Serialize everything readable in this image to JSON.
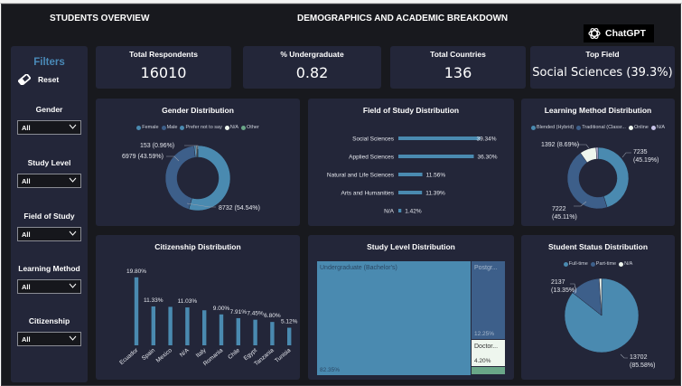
{
  "header": {
    "title_left": "STUDENTS  OVERVIEW",
    "title_center": "DEMOGRAPHICS AND ACADEMIC BREAKDOWN",
    "logo_text": "ChatGPT"
  },
  "kpis": [
    {
      "label": "Total Respondents",
      "value": "16010"
    },
    {
      "label": "% Undergraduate",
      "value": "0.82"
    },
    {
      "label": "Total Countries",
      "value": "136"
    },
    {
      "label": "Top Field",
      "value": "Social Sciences (39.3%)"
    }
  ],
  "filters": {
    "title": "Filters",
    "reset_label": "Reset",
    "items": [
      {
        "label": "Gender",
        "value": "All"
      },
      {
        "label": "Study Level",
        "value": "All"
      },
      {
        "label": "Field of Study",
        "value": "All"
      },
      {
        "label": "Learning Method",
        "value": "All"
      },
      {
        "label": "Citizenship",
        "value": "All"
      }
    ]
  },
  "colors": {
    "background": "#18191e",
    "card": "#232639",
    "accent": "#4a8ab8",
    "primary_series": "#4a8ab0",
    "secondary_series": "#3d5f8a",
    "light_series": "#eef6ee",
    "lavender": "#c7c3e8",
    "green": "#6aa688"
  },
  "chart_data": [
    {
      "id": "gender",
      "type": "pie",
      "donut": true,
      "title": "Gender Distribution",
      "legend": [
        "Female",
        "Male",
        "Prefer not to say",
        "N/A",
        "Other"
      ],
      "legend_colors": [
        "#4a8ab0",
        "#3d5f8a",
        "#4a8ab0",
        "#eef6ee",
        "#6aa688"
      ],
      "slices": [
        {
          "name": "Female",
          "value": 8732,
          "pct": 54.54,
          "label": "8732 (54.54%)",
          "color": "#4a8ab0"
        },
        {
          "name": "Male",
          "value": 6979,
          "pct": 43.59,
          "label": "6979 (43.59%)",
          "color": "#3d5f8a"
        },
        {
          "name": "Prefer not to say",
          "value": 153,
          "pct": 0.96,
          "label": "153 (0.96%)",
          "color": "#5a9ac0"
        },
        {
          "name": "N/A",
          "value": 80,
          "pct": 0.5,
          "label": "",
          "color": "#eef6ee"
        },
        {
          "name": "Other",
          "value": 66,
          "pct": 0.41,
          "label": "",
          "color": "#6aa688"
        }
      ]
    },
    {
      "id": "field",
      "type": "bar",
      "orientation": "horizontal",
      "title": "Field of Study Distribution",
      "categories": [
        "Social Sciences",
        "Applied Sciences",
        "Natural and Life Sciences",
        "Arts and Humanities",
        "N/A"
      ],
      "values": [
        39.34,
        36.3,
        11.56,
        11.39,
        1.42
      ],
      "labels": [
        "39.34%",
        "36.30%",
        "11.56%",
        "11.39%",
        "1.42%"
      ],
      "xlim": [
        0,
        40
      ]
    },
    {
      "id": "learning",
      "type": "pie",
      "donut": true,
      "title": "Learning Method Distribution",
      "legend": [
        "Blended (Hybrid)",
        "Traditional (Classr...",
        "Online",
        "N/A"
      ],
      "legend_colors": [
        "#4a8ab0",
        "#3d5f8a",
        "#eef6ee",
        "#c7c3e8"
      ],
      "slices": [
        {
          "name": "Blended (Hybrid)",
          "value": 7235,
          "pct": 45.19,
          "label": "7235\n(45.19%)",
          "color": "#4a8ab0"
        },
        {
          "name": "Traditional (Classroom)",
          "value": 7222,
          "pct": 45.11,
          "label": "7222\n(45.11%)",
          "color": "#3d5f8a"
        },
        {
          "name": "Online",
          "value": 1392,
          "pct": 8.69,
          "label": "1392 (8.69%)",
          "color": "#eef6ee"
        },
        {
          "name": "N/A",
          "value": 161,
          "pct": 1.01,
          "label": "",
          "color": "#c7c3e8"
        }
      ]
    },
    {
      "id": "citizenship",
      "type": "bar",
      "title": "Citizenship Distribution",
      "categories": [
        "Ecuador",
        "Spain",
        "Mexico",
        "N/A",
        "Italy",
        "Romania",
        "Chile",
        "Egypt",
        "Tanzania",
        "Tunisia"
      ],
      "values": [
        19.8,
        11.33,
        11.2,
        11.03,
        10.2,
        9.0,
        7.91,
        7.45,
        6.8,
        5.12
      ],
      "labels": [
        "19.80%",
        "11.33%",
        "",
        "11.03%",
        "",
        "9.00%",
        "7.91%",
        "7.45%",
        "6.80%",
        "5.12%"
      ],
      "ylim": [
        0,
        20
      ]
    },
    {
      "id": "study_level",
      "type": "treemap",
      "title": "Study Level Distribution",
      "items": [
        {
          "name": "Undergraduate (Bachelor's)",
          "pct": 82.35,
          "label": "82.35%",
          "color": "#4a8ab0",
          "text_color": "#2b4763"
        },
        {
          "name": "Postgr...",
          "pct": 12.25,
          "label": "12.25%",
          "color": "#3d5f8a",
          "text_color": "#a7b8cc"
        },
        {
          "name": "Doctor...",
          "pct": 4.2,
          "label": "4.20%",
          "color": "#eef6ee",
          "text_color": "#333333"
        },
        {
          "name": "Other",
          "pct": 1.2,
          "label": "",
          "color": "#6aa688",
          "text_color": "#333333"
        }
      ]
    },
    {
      "id": "status",
      "type": "pie",
      "donut": false,
      "title": "Student Status Distribution",
      "legend": [
        "Full-time",
        "Part-time",
        "N/A"
      ],
      "legend_colors": [
        "#4a8ab0",
        "#3d5f8a",
        "#eef6ee"
      ],
      "slices": [
        {
          "name": "Full-time",
          "value": 13702,
          "pct": 85.58,
          "label": "13702\n(85.58%)",
          "color": "#4a8ab0"
        },
        {
          "name": "Part-time",
          "value": 2137,
          "pct": 13.35,
          "label": "2137\n(13.35%)",
          "color": "#3d5f8a"
        },
        {
          "name": "N/A",
          "value": 171,
          "pct": 1.07,
          "label": "",
          "color": "#eef6ee"
        }
      ]
    }
  ]
}
